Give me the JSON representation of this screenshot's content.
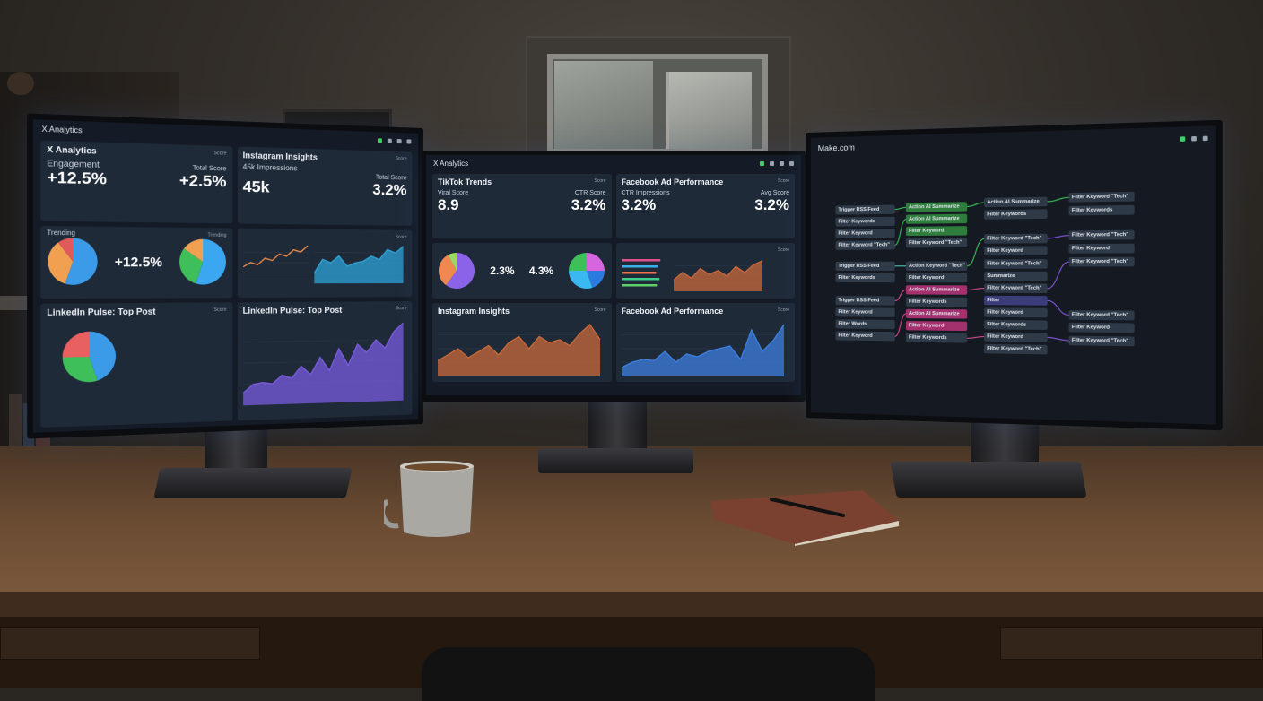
{
  "left_monitor": {
    "app_title": "X Analytics",
    "panels": {
      "x_analytics": {
        "title": "X Analytics",
        "meta": "Score",
        "label_left": "Engagement",
        "value_left": "+12.5%",
        "label_right": "Total Score",
        "value_right": "+2.5%"
      },
      "instagram": {
        "title": "Instagram Insights",
        "meta": "Score",
        "label_left": "45k Impressions",
        "value_left": "45k",
        "label_right": "Total Score",
        "value_right": "3.2%"
      },
      "trending": {
        "title": "Trending",
        "meta": "Trending",
        "center_value": "+12.5%",
        "pie1": [
          {
            "value": 55,
            "color": "#3b9be8"
          },
          {
            "value": 35,
            "color": "#f0a050"
          },
          {
            "value": 10,
            "color": "#e05a5a"
          }
        ],
        "pie2": [
          {
            "value": 55,
            "color": "#3aa7f0"
          },
          {
            "value": 30,
            "color": "#3fbf5a"
          },
          {
            "value": 15,
            "color": "#f0a050"
          }
        ]
      },
      "sentiment": {
        "meta": "Score",
        "line_values": [
          3,
          4,
          3.5,
          5,
          4.5,
          6,
          5.5,
          7,
          6.5,
          8
        ],
        "area_values": [
          2,
          6,
          5,
          7,
          4,
          5,
          5.5,
          7,
          6,
          9,
          8,
          10
        ]
      },
      "linkedin_table": {
        "title": "LinkedIn Pulse: Top Post",
        "meta": "Score",
        "pie": [
          {
            "value": 45,
            "color": "#3b9be8"
          },
          {
            "value": 30,
            "color": "#3fbf5a"
          },
          {
            "value": 25,
            "color": "#e86060"
          }
        ]
      },
      "linkedin_chart": {
        "title": "LinkedIn Pulse: Top Post",
        "meta": "Score",
        "values": [
          1,
          2,
          2.2,
          2,
          3,
          2.6,
          4,
          3,
          5,
          3.4,
          6,
          4,
          6.5,
          5.5,
          7,
          6,
          8,
          9
        ]
      }
    }
  },
  "center_monitor": {
    "app_title": "X Analytics",
    "panels": {
      "tiktok": {
        "title": "TikTok Trends",
        "meta": "Score",
        "label_left": "Viral Score",
        "value_left": "8.9",
        "label_right": "CTR Score",
        "value_right": "3.2%"
      },
      "facebook_top": {
        "title": "Facebook Ad Performance",
        "meta": "Score",
        "label_left": "CTR Impressions",
        "value_left": "3.2%",
        "label_right": "Avg Score",
        "value_right": "3.2%"
      },
      "pies": {
        "value1": "2.3%",
        "value2": "4.3%",
        "pie1": [
          {
            "value": 60,
            "color": "#8a63e8"
          },
          {
            "value": 32,
            "color": "#f08850"
          },
          {
            "value": 8,
            "color": "#9ad860"
          }
        ],
        "pie2": [
          {
            "value": 25,
            "color": "#d865e0"
          },
          {
            "value": 20,
            "color": "#2a7ae0"
          },
          {
            "value": 30,
            "color": "#3ab8f0"
          },
          {
            "value": 25,
            "color": "#3fbf5a"
          }
        ]
      },
      "bars": {
        "meta": "Score",
        "bar_colors": [
          "#e0508a",
          "#3ab0e8",
          "#f07050",
          "#3fcf8a",
          "#5fd06a"
        ],
        "bar_values": [
          0.9,
          0.85,
          0.8,
          0.88,
          0.82
        ],
        "area_values": [
          2,
          4,
          2.5,
          5,
          3.5,
          4.5,
          3,
          5.5,
          4,
          6,
          7
        ]
      },
      "instagram_chart": {
        "title": "Instagram Insights",
        "meta": "Score",
        "values": [
          2,
          3,
          4,
          2.5,
          3.5,
          4.5,
          3,
          5,
          6,
          4,
          6,
          5,
          5.5,
          4.5,
          6.5,
          8,
          5.5
        ]
      },
      "facebook_chart": {
        "title": "Facebook Ad Performance",
        "meta": "Score",
        "values": [
          1,
          2,
          2.5,
          2.3,
          4,
          2,
          3.5,
          3,
          4,
          4.5,
          5,
          2.5,
          8,
          4,
          6,
          9
        ]
      }
    }
  },
  "right_monitor": {
    "app_title": "Make.com",
    "columns": [
      [
        {
          "label": "Trigger RSS Feed",
          "color": "gray"
        },
        {
          "label": "Filter Keywords",
          "color": "gray"
        },
        {
          "label": "Filter Keyword",
          "color": "gray"
        },
        {
          "label": "Filter Keyword \"Tech\"",
          "color": "gray"
        },
        {
          "label": "Trigger RSS Feed",
          "color": "gray"
        },
        {
          "label": "Filter Keywords",
          "color": "gray"
        },
        {
          "label": "Trigger RSS Feed",
          "color": "gray"
        },
        {
          "label": "Filter Keyword",
          "color": "gray"
        },
        {
          "label": "Filter Words",
          "color": "gray"
        },
        {
          "label": "Filter Keyword",
          "color": "gray"
        }
      ],
      [
        {
          "label": "Action AI Summarize",
          "color": "green"
        },
        {
          "label": "Action AI Summarize",
          "color": "green"
        },
        {
          "label": "Filter Keyword",
          "color": "green"
        },
        {
          "label": "Filter Keyword \"Tech\"",
          "color": "gray"
        },
        {
          "label": "Action Keyword \"Tech\"",
          "color": "gray"
        },
        {
          "label": "Filter Keyword",
          "color": "gray"
        },
        {
          "label": "Action AI Summarize",
          "color": "pink"
        },
        {
          "label": "Filter Keywords",
          "color": "gray"
        },
        {
          "label": "Action AI Summarize",
          "color": "pink"
        },
        {
          "label": "Filter Keyword",
          "color": "pink"
        },
        {
          "label": "Filter Keywords",
          "color": "gray"
        }
      ],
      [
        {
          "label": "Action AI Summarize",
          "color": "gray"
        },
        {
          "label": "Filter Keywords",
          "color": "gray"
        },
        {
          "label": "Filter Keyword \"Tech\"",
          "color": "gray"
        },
        {
          "label": "Filter Keyword",
          "color": "gray"
        },
        {
          "label": "Filter Keyword \"Tech\"",
          "color": "gray"
        },
        {
          "label": "Summarize",
          "color": "gray"
        },
        {
          "label": "Filter Keyword \"Tech\"",
          "color": "gray"
        },
        {
          "label": "Filter",
          "color": "purple"
        },
        {
          "label": "Filter Keyword",
          "color": "gray"
        },
        {
          "label": "Filter Keywords",
          "color": "gray"
        },
        {
          "label": "Filter Keyword",
          "color": "gray"
        },
        {
          "label": "Filter Keyword \"Tech\"",
          "color": "gray"
        }
      ],
      [
        {
          "label": "Filter Keyword \"Tech\"",
          "color": "gray"
        },
        {
          "label": "Filter Keywords",
          "color": "gray"
        },
        {
          "label": "Filter Keyword \"Tech\"",
          "color": "gray"
        },
        {
          "label": "Filter Keyword",
          "color": "gray"
        },
        {
          "label": "Filter Keyword \"Tech\"",
          "color": "gray"
        },
        {
          "label": "Filter Keyword \"Tech\"",
          "color": "gray"
        },
        {
          "label": "Filter Keyword",
          "color": "gray"
        },
        {
          "label": "Filter Keyword \"Tech\"",
          "color": "gray"
        }
      ]
    ]
  }
}
